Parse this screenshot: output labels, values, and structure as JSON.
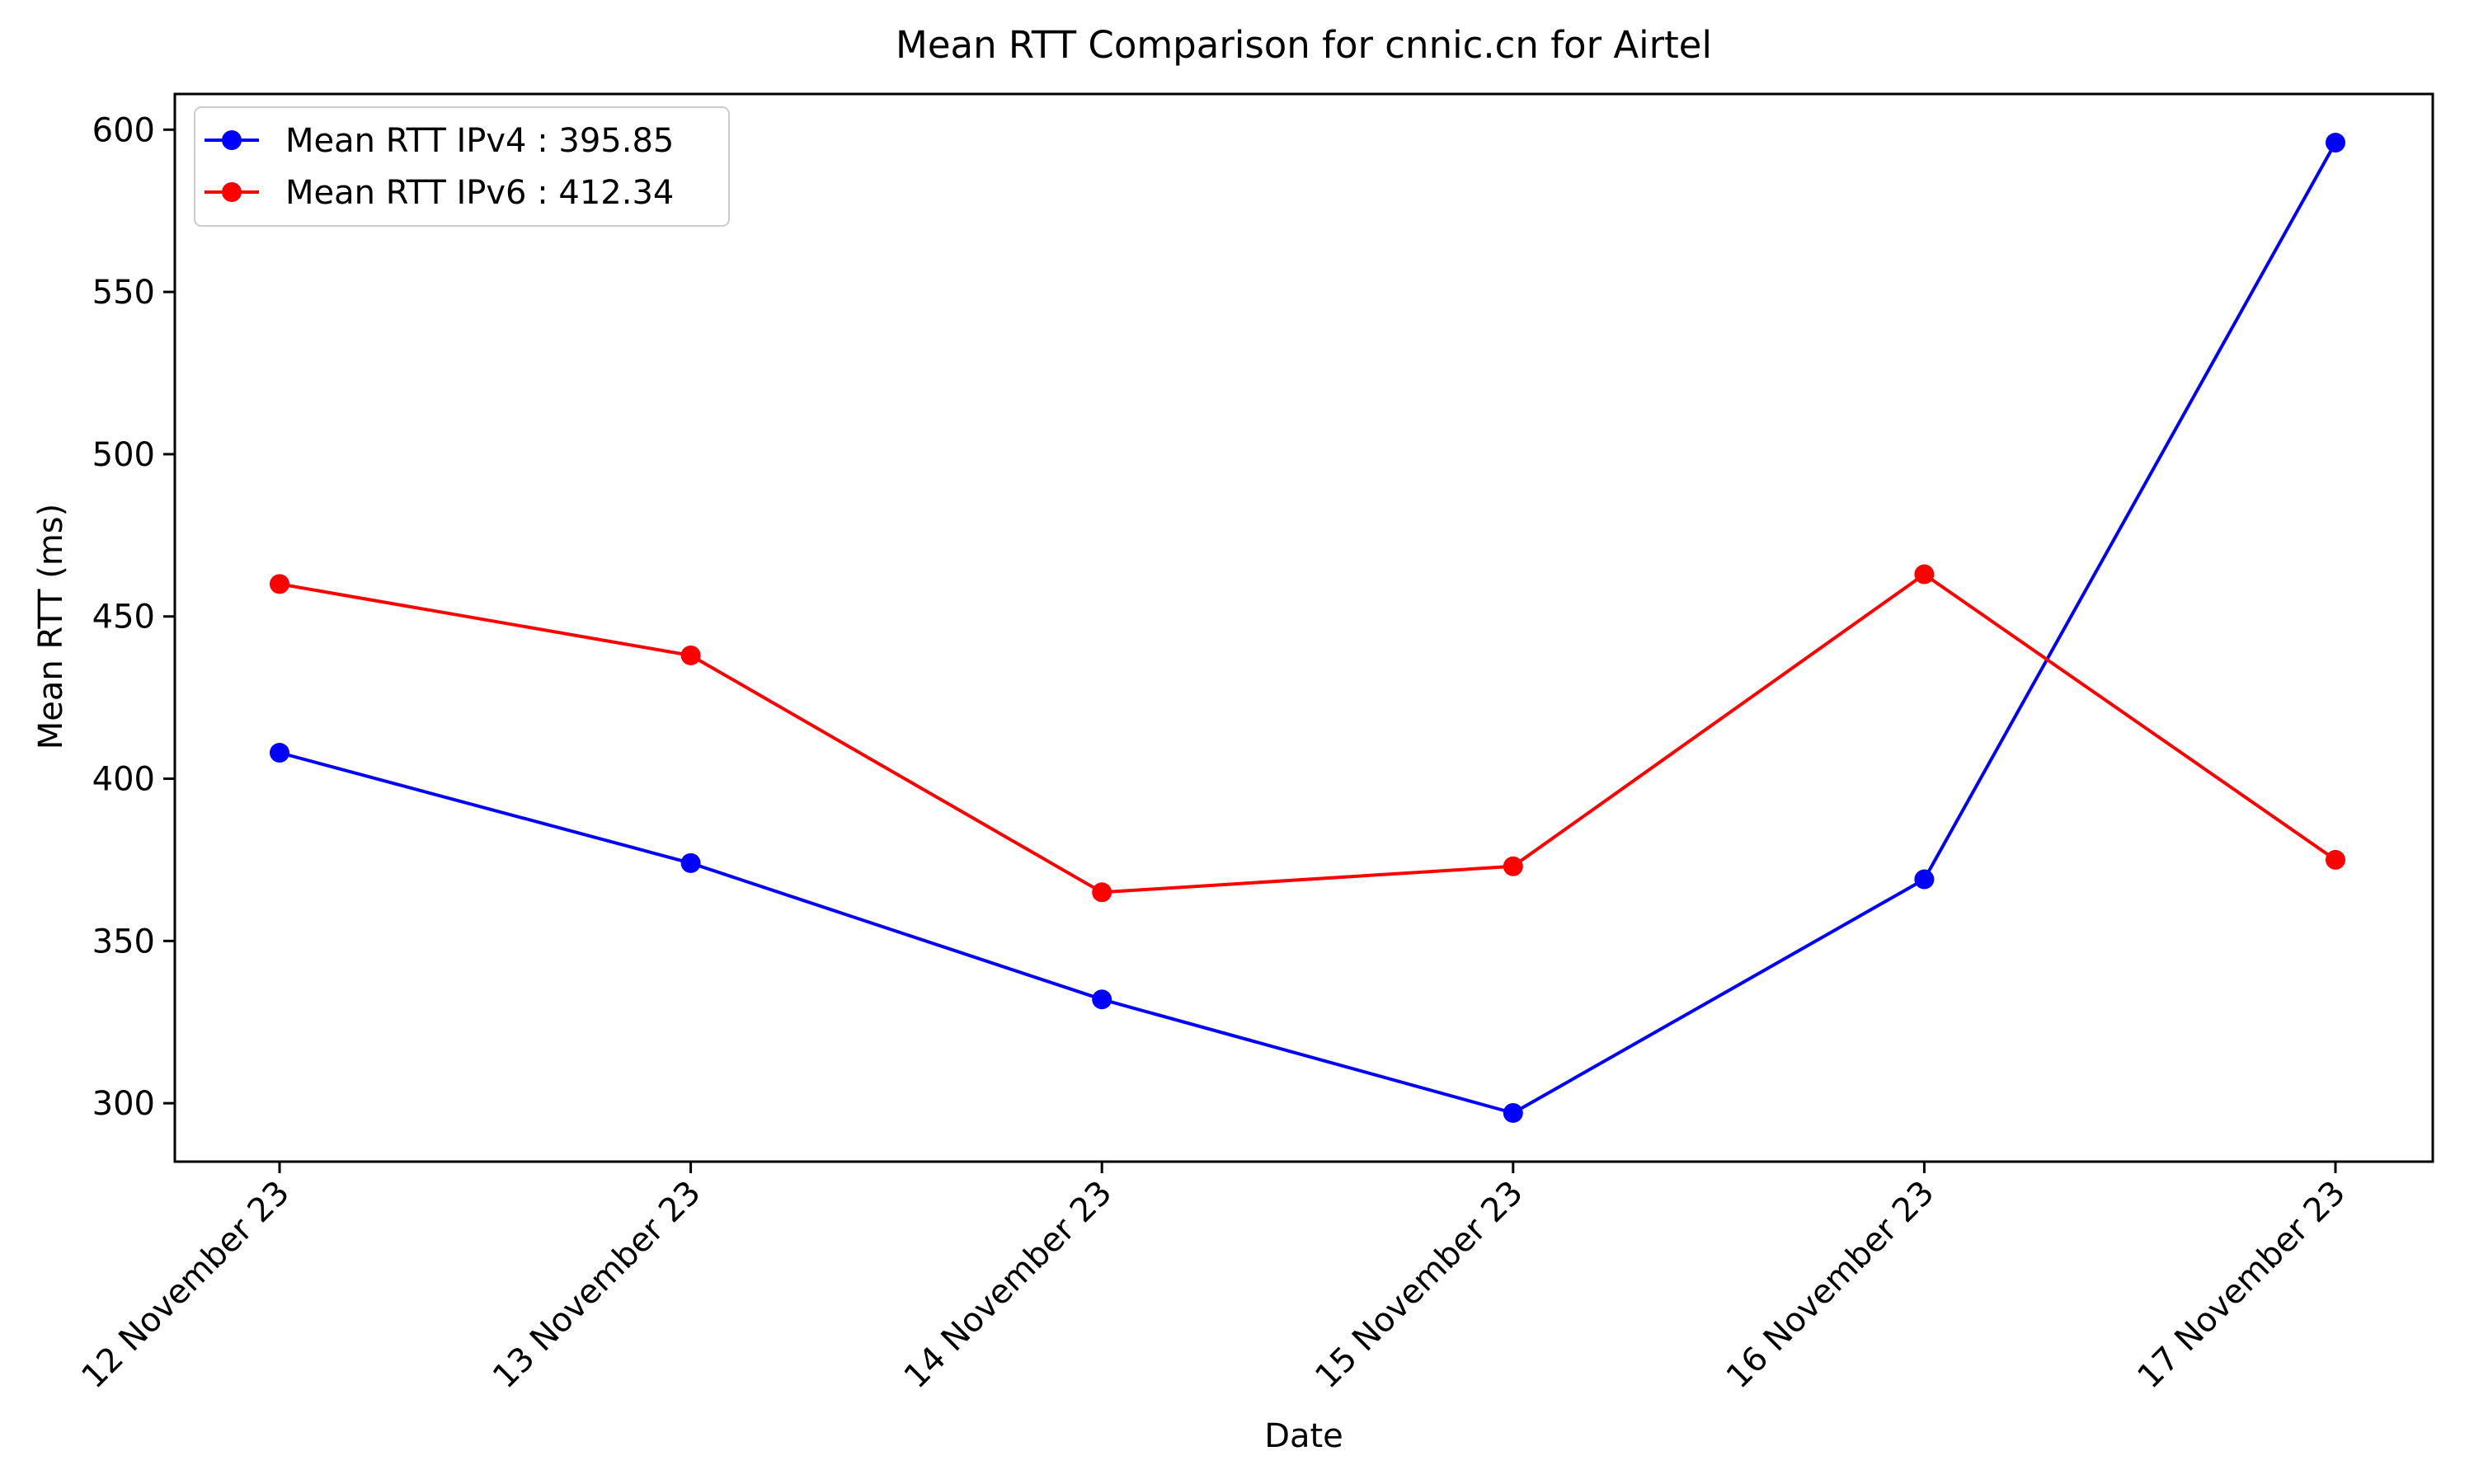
{
  "chart_data": {
    "type": "line",
    "title": "Mean RTT Comparison for cnnic.cn for Airtel",
    "xlabel": "Date",
    "ylabel": "Mean RTT (ms)",
    "categories": [
      "12 November 23",
      "13 November 23",
      "14 November 23",
      "15 November 23",
      "16 November 23",
      "17 November 23"
    ],
    "series": [
      {
        "name": "Mean RTT IPv4 : 395.85",
        "color": "#0000ff",
        "marker": "circle",
        "values": [
          408,
          374,
          332,
          297,
          369,
          596
        ]
      },
      {
        "name": "Mean RTT IPv6 : 412.34",
        "color": "#ff0000",
        "marker": "circle",
        "values": [
          460,
          438,
          365,
          373,
          463,
          375
        ]
      }
    ],
    "yticks": [
      300,
      350,
      400,
      450,
      500,
      550,
      600
    ],
    "ylim": [
      282,
      611
    ],
    "grid": false,
    "legend": "top-left"
  }
}
